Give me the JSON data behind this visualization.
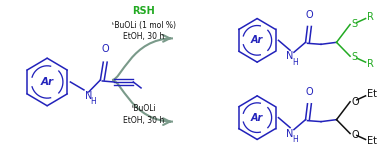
{
  "bg_color": "#ffffff",
  "blue": "#2222bb",
  "green": "#22aa22",
  "gray_arrow": "#7a9a8a",
  "black": "#111111",
  "fig_width": 3.78,
  "fig_height": 1.58,
  "dpi": 100,
  "arrow_top_text1": "RSH",
  "arrow_top_text2": "ᵗBuOLi (1 mol %)",
  "arrow_top_text3": "EtOH, 30 h",
  "arrow_bot_text1": "ᵗBuOLi",
  "arrow_bot_text2": "EtOH, 30 h"
}
